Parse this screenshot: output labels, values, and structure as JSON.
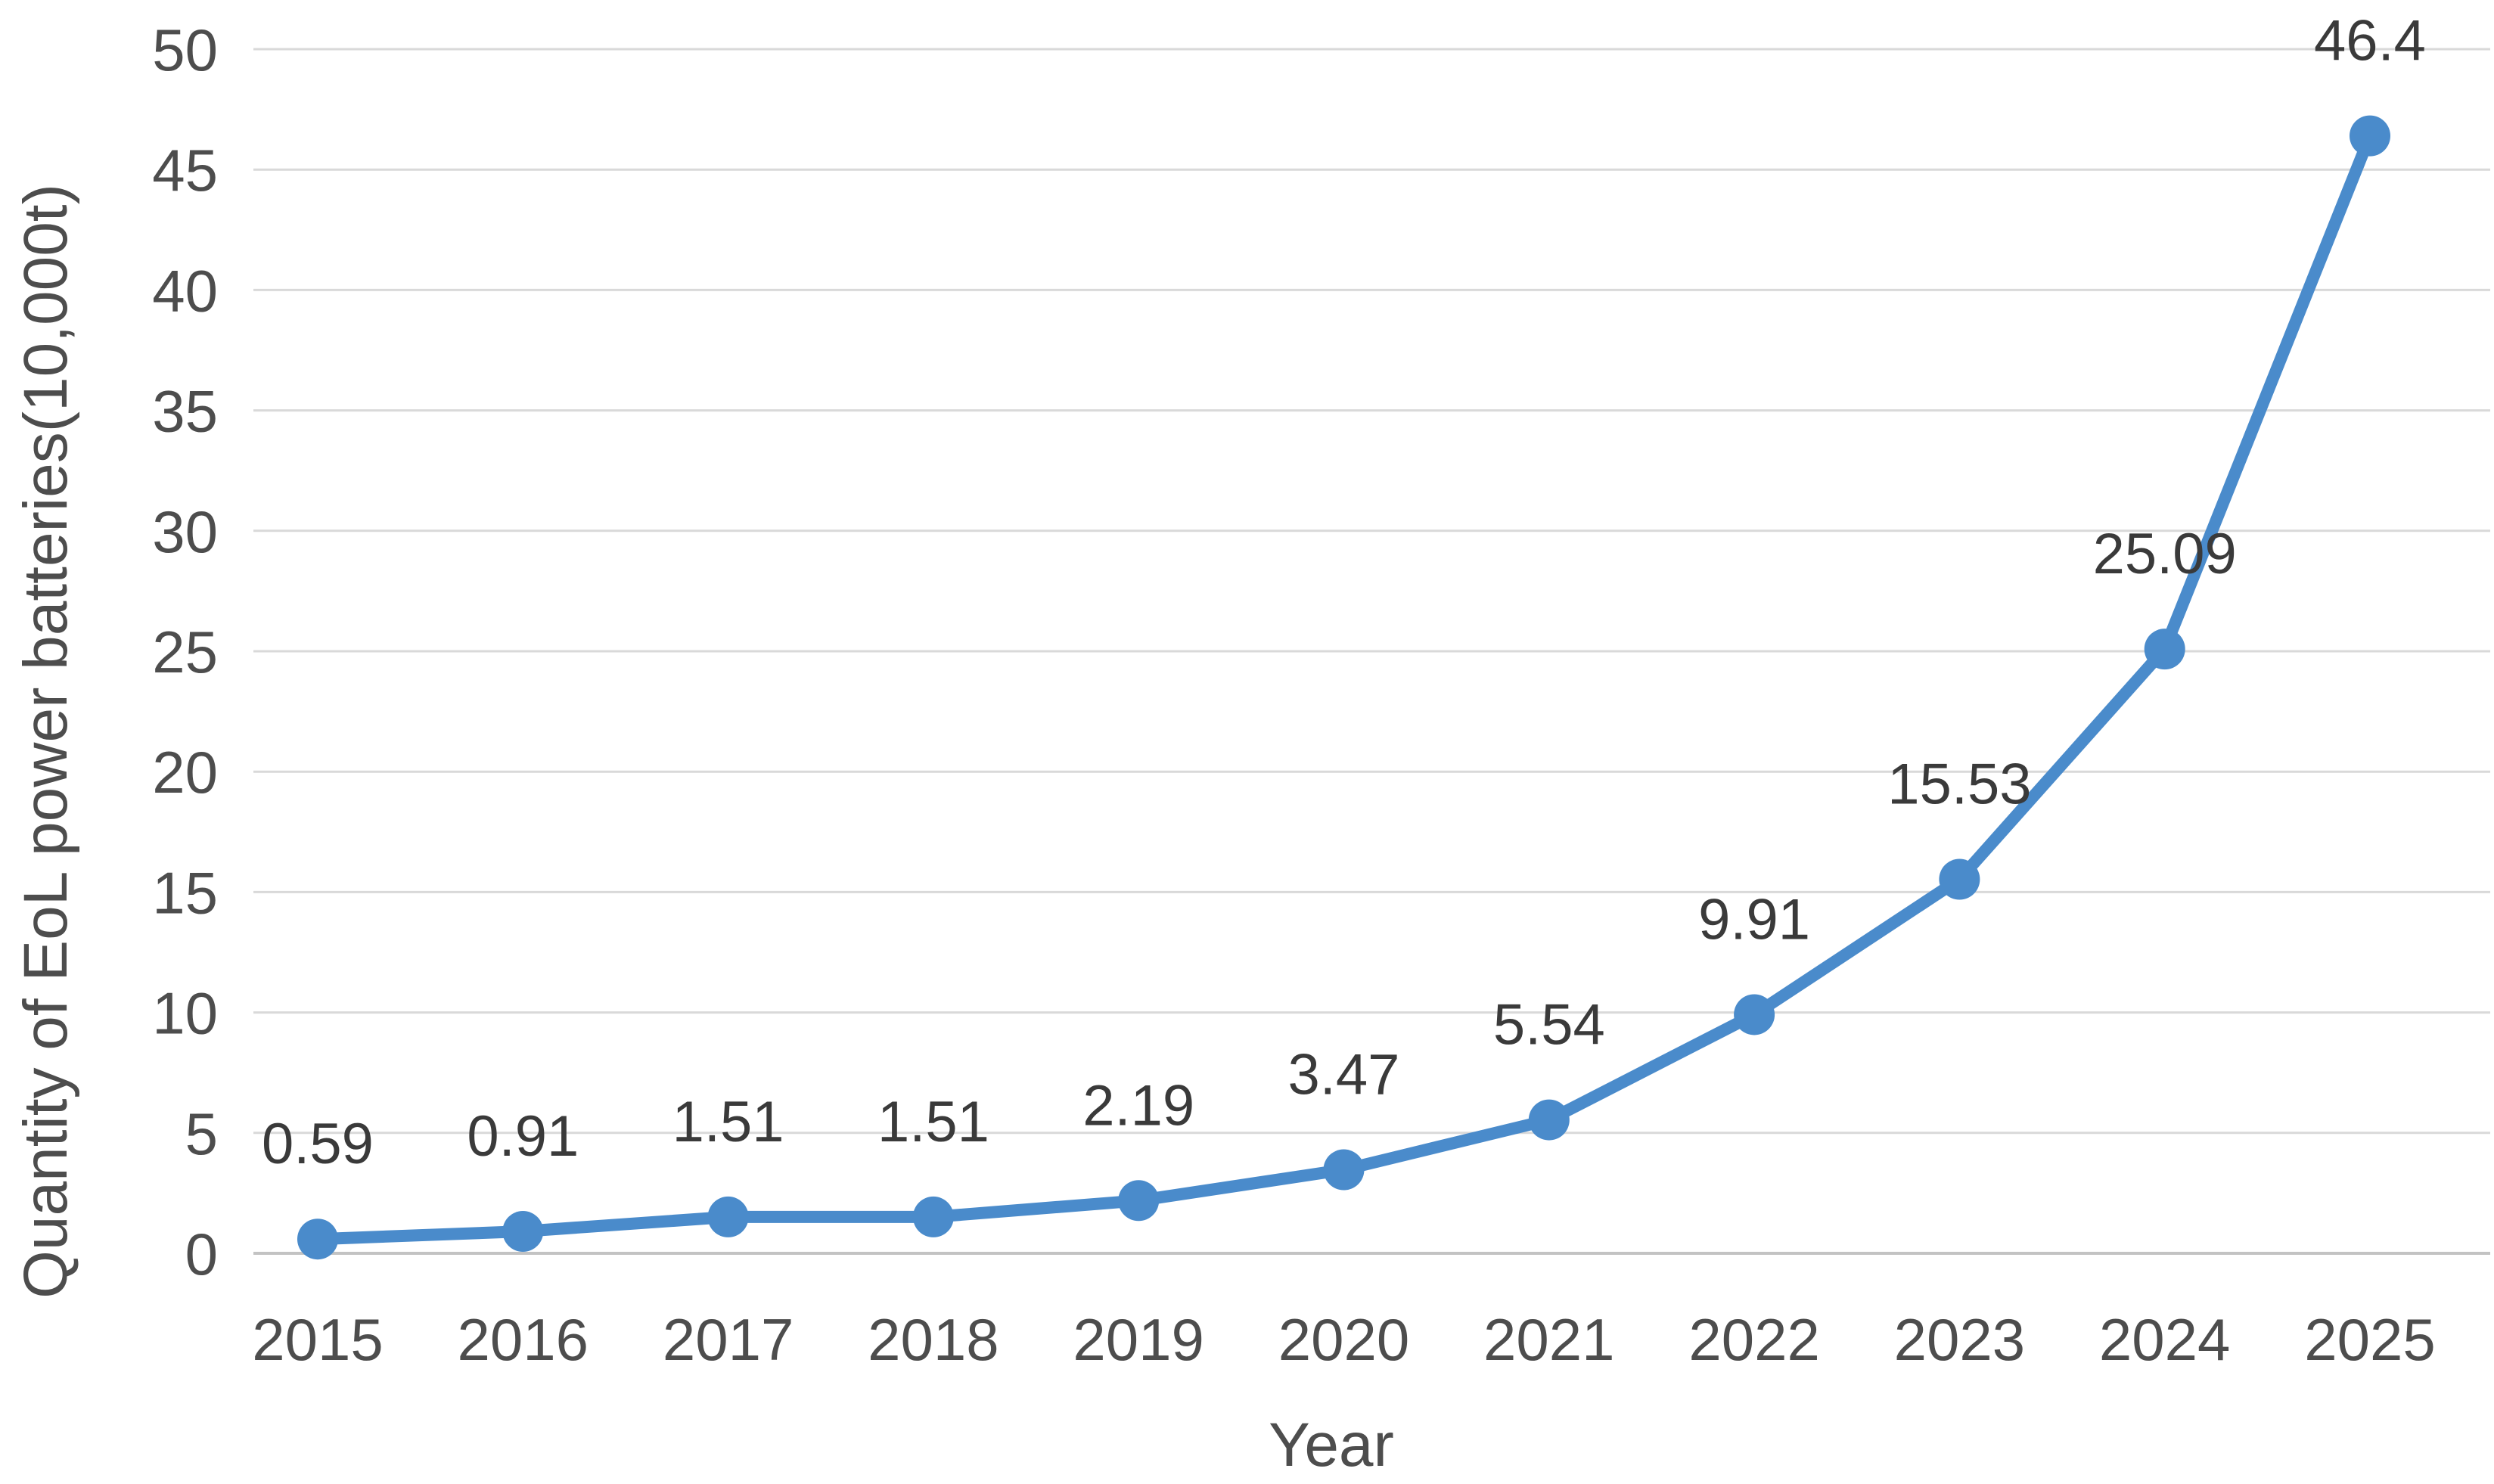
{
  "chart_data": {
    "type": "line",
    "title": "",
    "xlabel": "Year",
    "ylabel": "Quantity of EoL power batteries(10,000t)",
    "categories": [
      "2015",
      "2016",
      "2017",
      "2018",
      "2019",
      "2020",
      "2021",
      "2022",
      "2023",
      "2024",
      "2025"
    ],
    "series": [
      {
        "name": "Quantity of EoL power batteries",
        "values": [
          0.59,
          0.91,
          1.51,
          1.51,
          2.19,
          3.47,
          5.54,
          9.91,
          15.53,
          25.09,
          46.4
        ],
        "data_labels": [
          "0.59",
          "0.91",
          "1.51",
          "1.51",
          "2.19",
          "3.47",
          "5.54",
          "9.91",
          "15.53",
          "25.09",
          "46.4"
        ]
      }
    ],
    "yticks": [
      "0",
      "5",
      "10",
      "15",
      "20",
      "25",
      "30",
      "35",
      "40",
      "45",
      "50"
    ],
    "ylim": [
      0,
      50
    ],
    "grid": "horizontal",
    "legend": "none",
    "colors": {
      "line": "#4a8bcb",
      "marker": "#4a8bcb",
      "grid": "#d9d9d9",
      "baseline": "#c3c3c3",
      "tick_text": "#4d4d4d",
      "label_text": "#3a3a3a"
    }
  }
}
